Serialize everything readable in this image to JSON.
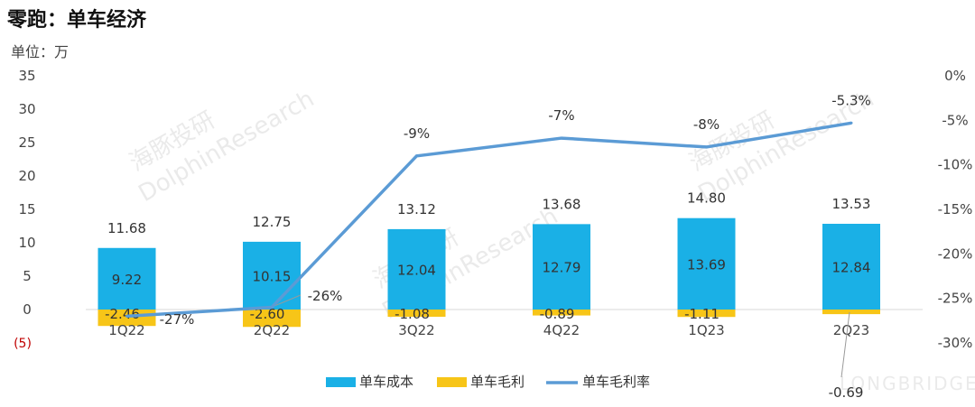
{
  "title": "零跑：单车经济",
  "unit_label": "单位：万",
  "colors": {
    "cost": "#1ab0e6",
    "margin": "#f7c518",
    "rate": "#5b9bd5",
    "axis": "#d9d9d9"
  },
  "watermarks": [
    "海豚投研",
    "DolphinResearch",
    "LONGBRIDGE"
  ],
  "chart_data": {
    "type": "bar",
    "categories": [
      "1Q22",
      "2Q22",
      "3Q22",
      "4Q22",
      "1Q23",
      "2Q23"
    ],
    "series": [
      {
        "name": "单车成本",
        "type": "bar",
        "axis": "left",
        "values": [
          9.22,
          10.15,
          12.04,
          12.79,
          13.69,
          12.84
        ],
        "labels": [
          "9.22",
          "10.15",
          "12.04",
          "12.79",
          "13.69",
          "12.84"
        ]
      },
      {
        "name": "单车毛利",
        "type": "bar",
        "axis": "left",
        "values": [
          -2.46,
          -2.6,
          -1.08,
          -0.89,
          -1.11,
          -0.69
        ],
        "labels": [
          "-2.46",
          "-2.60",
          "-1.08",
          "-0.89",
          "-1.11",
          "-0.69"
        ]
      },
      {
        "name": "单车毛利率",
        "type": "line",
        "axis": "right",
        "values": [
          -27,
          -26,
          -9,
          -7,
          -8,
          -5.3
        ],
        "labels": [
          "-27%",
          "-26%",
          "-9%",
          "-7%",
          "-8%",
          "-5.3%"
        ]
      }
    ],
    "totals": [
      11.68,
      12.75,
      13.12,
      13.68,
      14.8,
      13.53
    ],
    "total_labels": [
      "11.68",
      "12.75",
      "13.12",
      "13.68",
      "14.80",
      "13.53"
    ],
    "left_axis": {
      "ylim": [
        -5,
        35
      ],
      "ticks": [
        "35",
        "30",
        "25",
        "20",
        "15",
        "10",
        "5",
        "0",
        "(5)"
      ],
      "tick_values": [
        35,
        30,
        25,
        20,
        15,
        10,
        5,
        0,
        -5
      ]
    },
    "right_axis": {
      "ylim": [
        -30,
        0
      ],
      "ticks": [
        "0%",
        "-5%",
        "-10%",
        "-15%",
        "-20%",
        "-25%",
        "-30%"
      ],
      "tick_values": [
        0,
        -5,
        -10,
        -15,
        -20,
        -25,
        -30
      ]
    },
    "legend": {
      "position": "bottom",
      "items": [
        "单车成本",
        "单车毛利",
        "单车毛利率"
      ]
    },
    "grid": false
  }
}
